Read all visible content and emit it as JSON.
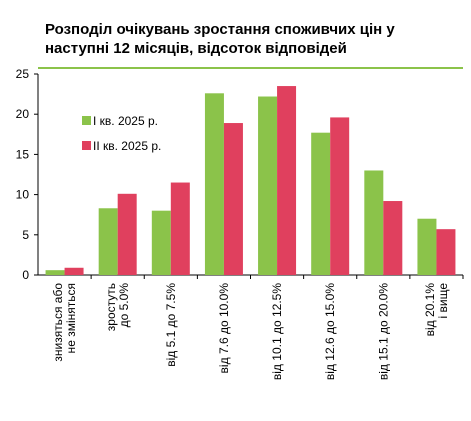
{
  "chart_data": {
    "type": "bar",
    "title": "Розподіл очікувань зростання споживчих цін у наступні 12 місяців, відсоток відповідей",
    "categories": [
      [
        "знизяться або",
        "не зміняться"
      ],
      [
        "зростуть",
        "до 5.0%"
      ],
      [
        "від 5.1 до 7.5%"
      ],
      [
        "від 7.6 до 10.0%"
      ],
      [
        "від 10.1 до 12.5%"
      ],
      [
        "від 12.6 до 15.0%"
      ],
      [
        "від 15.1 до 20.0%"
      ],
      [
        "від 20.1%",
        "і вище"
      ]
    ],
    "series": [
      {
        "name": "I кв. 2025 р.",
        "color": "#8bc34a",
        "values": [
          0.6,
          8.3,
          8.0,
          22.6,
          22.2,
          17.7,
          13.0,
          7.0
        ]
      },
      {
        "name": "II кв. 2025 р.",
        "color": "#e0405e",
        "values": [
          0.9,
          10.1,
          11.5,
          18.9,
          23.5,
          19.6,
          9.2,
          5.7
        ]
      }
    ],
    "yticks": [
      "0",
      "5",
      "10",
      "15",
      "20",
      "25"
    ],
    "ylim": [
      0,
      25
    ],
    "grid": false,
    "legend": "upper-left inside plot"
  }
}
